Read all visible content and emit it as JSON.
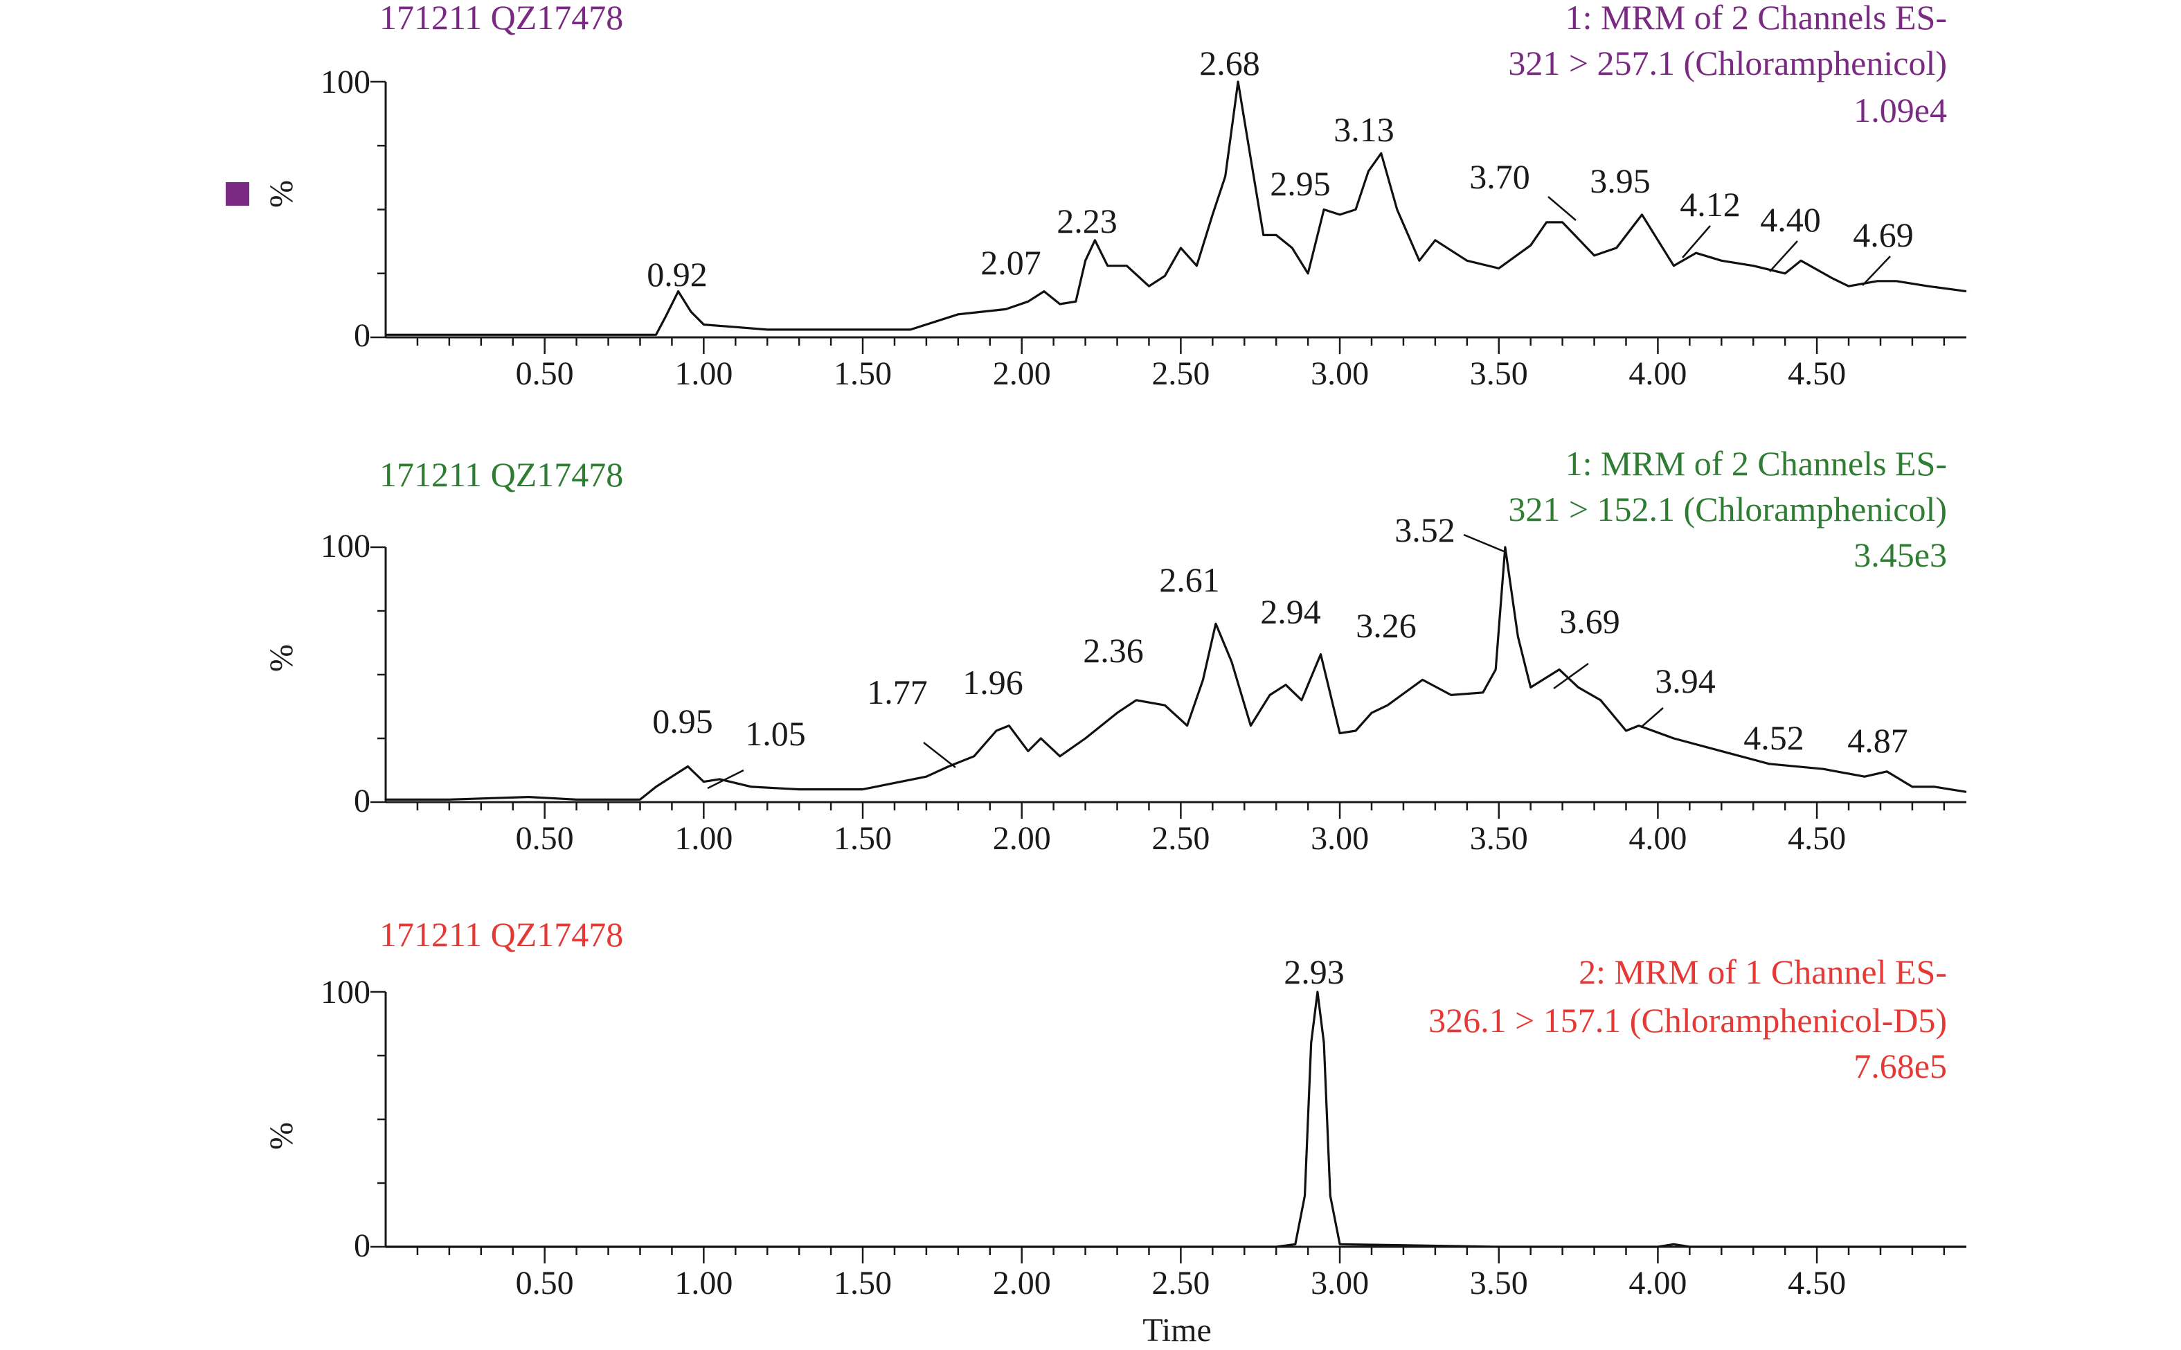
{
  "chart_data": [
    {
      "type": "line",
      "sample": "171211 QZ17478",
      "color": "#7b2a83",
      "legend_marker": true,
      "header_lines": [
        "1: MRM of 2 Channels ES-",
        "321 > 257.1 (Chloramphenicol)",
        "1.09e4"
      ],
      "xlabel": "",
      "ylabel": "%",
      "xlim": [
        0.0,
        4.97
      ],
      "ylim": [
        0,
        100
      ],
      "xticks": [
        0.5,
        1.0,
        1.5,
        2.0,
        2.5,
        3.0,
        3.5,
        4.0,
        4.5
      ],
      "xtick_labels": [
        "0.50",
        "1.00",
        "1.50",
        "2.00",
        "2.50",
        "3.00",
        "3.50",
        "4.00",
        "4.50"
      ],
      "yticks": [
        0,
        100
      ],
      "ytick_labels": [
        "0",
        "100"
      ],
      "series": [
        {
          "name": "321 > 257.1",
          "x": [
            0.0,
            0.2,
            0.4,
            0.6,
            0.85,
            0.88,
            0.92,
            0.96,
            1.0,
            1.1,
            1.2,
            1.35,
            1.5,
            1.65,
            1.8,
            1.95,
            2.02,
            2.07,
            2.12,
            2.17,
            2.2,
            2.23,
            2.27,
            2.33,
            2.4,
            2.45,
            2.5,
            2.55,
            2.6,
            2.64,
            2.68,
            2.72,
            2.76,
            2.8,
            2.85,
            2.9,
            2.95,
            3.0,
            3.05,
            3.09,
            3.13,
            3.18,
            3.25,
            3.3,
            3.4,
            3.5,
            3.6,
            3.65,
            3.7,
            3.8,
            3.87,
            3.95,
            4.05,
            4.12,
            4.2,
            4.3,
            4.4,
            4.45,
            4.55,
            4.6,
            4.69,
            4.75,
            4.85,
            4.97
          ],
          "y": [
            1,
            1,
            1,
            1,
            1,
            8,
            18,
            10,
            5,
            4,
            3,
            3,
            3,
            3,
            9,
            11,
            14,
            18,
            13,
            14,
            30,
            38,
            28,
            28,
            20,
            24,
            35,
            28,
            48,
            63,
            100,
            70,
            40,
            40,
            35,
            25,
            50,
            48,
            50,
            65,
            72,
            50,
            30,
            38,
            30,
            27,
            36,
            45,
            45,
            32,
            35,
            48,
            28,
            33,
            30,
            28,
            25,
            30,
            23,
            20,
            22,
            22,
            20,
            18
          ]
        }
      ],
      "peak_labels": [
        "0.92",
        "2.07",
        "2.23",
        "2.68",
        "2.95",
        "3.13",
        "3.70",
        "3.95",
        "4.12",
        "4.40",
        "4.69"
      ]
    },
    {
      "type": "line",
      "sample": "171211 QZ17478",
      "color": "#2e7d32",
      "legend_marker": false,
      "header_lines": [
        "1: MRM of 2 Channels ES-",
        "321 > 152.1 (Chloramphenicol)",
        "3.45e3"
      ],
      "xlabel": "",
      "ylabel": "%",
      "xlim": [
        0.0,
        4.97
      ],
      "ylim": [
        0,
        100
      ],
      "xticks": [
        0.5,
        1.0,
        1.5,
        2.0,
        2.5,
        3.0,
        3.5,
        4.0,
        4.5
      ],
      "xtick_labels": [
        "0.50",
        "1.00",
        "1.50",
        "2.00",
        "2.50",
        "3.00",
        "3.50",
        "4.00",
        "4.50"
      ],
      "yticks": [
        0,
        100
      ],
      "ytick_labels": [
        "0",
        "100"
      ],
      "series": [
        {
          "name": "321 > 152.1",
          "x": [
            0.0,
            0.2,
            0.45,
            0.6,
            0.8,
            0.85,
            0.9,
            0.95,
            1.0,
            1.05,
            1.15,
            1.3,
            1.5,
            1.7,
            1.77,
            1.85,
            1.92,
            1.96,
            2.02,
            2.06,
            2.12,
            2.2,
            2.3,
            2.36,
            2.45,
            2.52,
            2.57,
            2.61,
            2.66,
            2.72,
            2.78,
            2.83,
            2.88,
            2.94,
            3.0,
            3.05,
            3.1,
            3.15,
            3.26,
            3.35,
            3.45,
            3.49,
            3.52,
            3.56,
            3.6,
            3.69,
            3.75,
            3.82,
            3.9,
            3.94,
            4.05,
            4.2,
            4.35,
            4.52,
            4.65,
            4.72,
            4.8,
            4.87,
            4.97
          ],
          "y": [
            1,
            1,
            2,
            1,
            1,
            6,
            10,
            14,
            8,
            9,
            6,
            5,
            5,
            10,
            14,
            18,
            28,
            30,
            20,
            25,
            18,
            25,
            35,
            40,
            38,
            30,
            48,
            70,
            55,
            30,
            42,
            46,
            40,
            58,
            27,
            28,
            35,
            38,
            48,
            42,
            43,
            52,
            100,
            65,
            45,
            52,
            45,
            40,
            28,
            30,
            25,
            20,
            15,
            13,
            10,
            12,
            6,
            6,
            4
          ]
        }
      ],
      "peak_labels": [
        "0.95",
        "1.05",
        "1.77",
        "1.96",
        "2.36",
        "2.61",
        "2.94",
        "3.26",
        "3.52",
        "3.69",
        "3.94",
        "4.52",
        "4.87"
      ]
    },
    {
      "type": "line",
      "sample": "171211 QZ17478",
      "color": "#e53935",
      "legend_marker": false,
      "header_lines": [
        "2: MRM of 1 Channel ES-",
        "326.1 > 157.1 (Chloramphenicol-D5)",
        "7.68e5"
      ],
      "xlabel": "Time",
      "ylabel": "%",
      "xlim": [
        0.0,
        4.97
      ],
      "ylim": [
        0,
        100
      ],
      "xticks": [
        0.5,
        1.0,
        1.5,
        2.0,
        2.5,
        3.0,
        3.5,
        4.0,
        4.5
      ],
      "xtick_labels": [
        "0.50",
        "1.00",
        "1.50",
        "2.00",
        "2.50",
        "3.00",
        "3.50",
        "4.00",
        "4.50"
      ],
      "yticks": [
        0,
        100
      ],
      "ytick_labels": [
        "0",
        "100"
      ],
      "series": [
        {
          "name": "326.1 > 157.1",
          "x": [
            0.0,
            0.9,
            1.95,
            2.3,
            2.8,
            2.86,
            2.89,
            2.91,
            2.93,
            2.95,
            2.97,
            3.0,
            3.5,
            4.0,
            4.05,
            4.1,
            4.97
          ],
          "y": [
            0,
            0,
            0,
            0,
            0,
            1,
            20,
            80,
            100,
            80,
            20,
            1,
            0,
            0,
            1,
            0,
            0
          ]
        }
      ],
      "peak_labels": [
        "2.93"
      ]
    }
  ]
}
